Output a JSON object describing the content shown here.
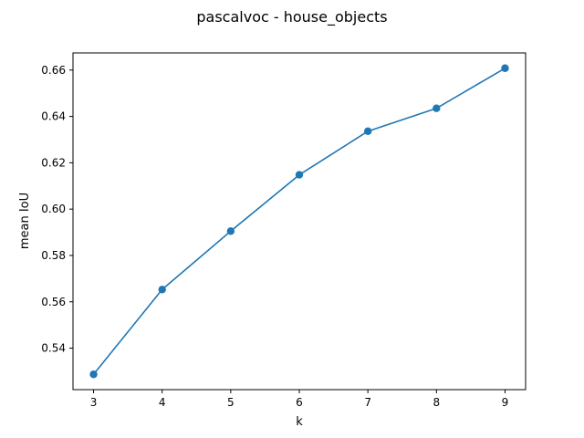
{
  "chart_data": {
    "type": "line",
    "title": "pascalvoc - house_objects",
    "xlabel": "k",
    "ylabel": "mean IoU",
    "x": [
      3,
      4,
      5,
      6,
      7,
      8,
      9
    ],
    "series": [
      {
        "values": [
          0.5287,
          0.5653,
          0.5905,
          0.6148,
          0.6336,
          0.6435,
          0.6608
        ],
        "color": "#1f77b4",
        "marker": "circle"
      }
    ],
    "xticks": [
      "3",
      "4",
      "5",
      "6",
      "7",
      "8",
      "9"
    ],
    "yticks": [
      "0.54",
      "0.56",
      "0.58",
      "0.60",
      "0.62",
      "0.64",
      "0.66"
    ],
    "xlim": [
      2.7,
      9.3
    ],
    "ylim": [
      0.5221,
      0.6674
    ],
    "grid": false,
    "legend": "none"
  }
}
